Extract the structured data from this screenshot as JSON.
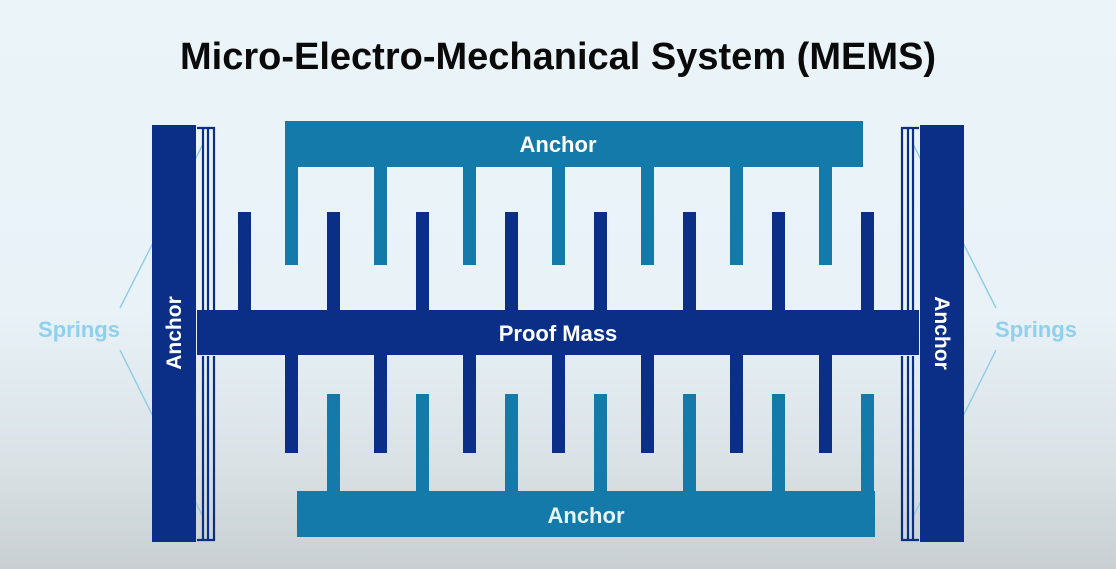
{
  "title": "Micro-Electro-Mechanical System (MEMS)",
  "labels": {
    "anchor_top": "Anchor",
    "anchor_bottom": "Anchor",
    "anchor_left": "Anchor",
    "anchor_right": "Anchor",
    "proof_mass": "Proof Mass",
    "springs_left": "Springs",
    "springs_right": "Springs"
  },
  "colors": {
    "dark_blue": "#0b2f86",
    "teal_blue": "#137aa9",
    "springs_text": "#8fd0ee",
    "spring_line": "#8ecbe6"
  }
}
